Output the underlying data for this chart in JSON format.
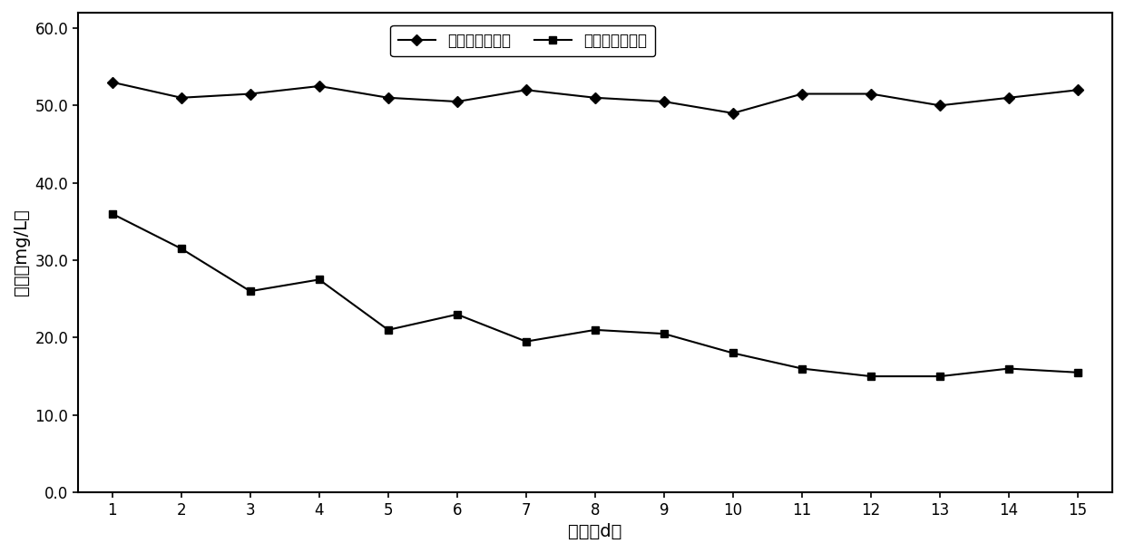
{
  "days": [
    1,
    2,
    3,
    4,
    5,
    6,
    7,
    8,
    9,
    10,
    11,
    12,
    13,
    14,
    15
  ],
  "inlet_mn": [
    53.0,
    51.0,
    51.5,
    52.5,
    51.0,
    50.5,
    52.0,
    51.0,
    50.5,
    49.0,
    51.5,
    51.5,
    50.0,
    51.0,
    52.0
  ],
  "outlet_mn": [
    36.0,
    31.5,
    26.0,
    27.5,
    21.0,
    23.0,
    19.5,
    21.0,
    20.5,
    18.0,
    16.0,
    15.0,
    15.0,
    16.0,
    15.5
  ],
  "xlabel": "时间（d）",
  "ylabel": "浓度（mg/L）",
  "legend_inlet": "进水二价锄浓度",
  "legend_outlet": "出水二价锄浓度",
  "ylim": [
    0,
    62
  ],
  "yticks": [
    0.0,
    10.0,
    20.0,
    30.0,
    40.0,
    50.0,
    60.0
  ],
  "line_color": "#000000",
  "bg_color": "#ffffff",
  "label_fontsize": 14,
  "tick_fontsize": 12,
  "legend_fontsize": 12
}
